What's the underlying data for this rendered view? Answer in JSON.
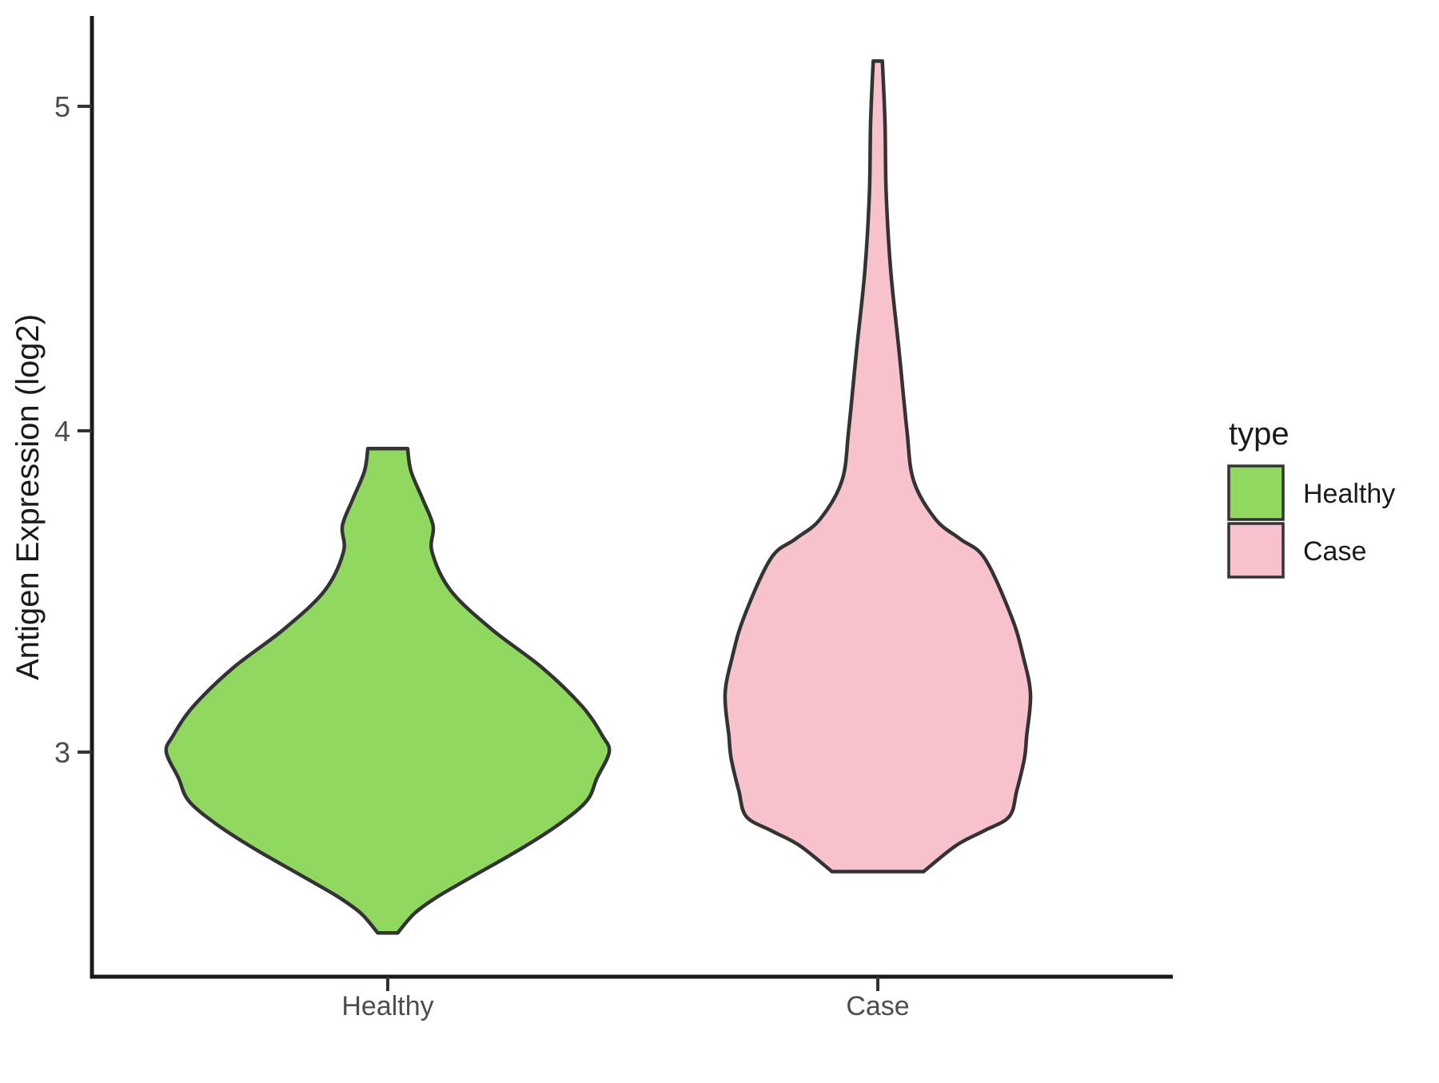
{
  "figure": {
    "background": "#ffffff"
  },
  "y_axis": {
    "title": "Antigen Expression (log2)",
    "tick_labels": [
      "5",
      "4",
      "3"
    ]
  },
  "x_axis": {
    "tick_labels": [
      "Healthy",
      "Case"
    ]
  },
  "legend": {
    "title": "type",
    "entries": [
      {
        "label": "Healthy",
        "color": "#90D860"
      },
      {
        "label": "Case",
        "color": "#F8C2CC"
      }
    ]
  },
  "chart_data": {
    "type": "violin",
    "title": "",
    "xlabel": "",
    "ylabel": "Antigen Expression (log2)",
    "categories": [
      "Healthy",
      "Case"
    ],
    "y_ticks": [
      3,
      4,
      5
    ],
    "ylim": [
      2.3,
      5.28
    ],
    "grid": false,
    "legend_position": "right",
    "legend_title": "type",
    "outline_color": "#333333",
    "text_colors": {
      "axis_text": "#4d4d4d",
      "titles": "#1a1a1a"
    },
    "series": [
      {
        "name": "Healthy",
        "fill": "#90D860",
        "range": [
          2.44,
          3.94
        ],
        "peak_value": 3.0,
        "flat_top": true,
        "flat_bottom": true,
        "profile": [
          [
            3.94,
            0.09
          ],
          [
            3.87,
            0.105
          ],
          [
            3.78,
            0.16
          ],
          [
            3.7,
            0.205
          ],
          [
            3.62,
            0.2
          ],
          [
            3.5,
            0.285
          ],
          [
            3.38,
            0.47
          ],
          [
            3.26,
            0.7
          ],
          [
            3.14,
            0.88
          ],
          [
            3.05,
            0.97
          ],
          [
            3.0,
            1.0
          ],
          [
            2.92,
            0.945
          ],
          [
            2.85,
            0.9
          ],
          [
            2.78,
            0.78
          ],
          [
            2.7,
            0.6
          ],
          [
            2.61,
            0.37
          ],
          [
            2.55,
            0.22
          ],
          [
            2.5,
            0.12
          ],
          [
            2.44,
            0.045
          ]
        ]
      },
      {
        "name": "Case",
        "fill": "#F8C2CC",
        "range": [
          2.63,
          5.14
        ],
        "peak_value": 3.18,
        "flat_top": true,
        "flat_bottom": true,
        "profile": [
          [
            5.14,
            0.03
          ],
          [
            4.95,
            0.047
          ],
          [
            4.73,
            0.055
          ],
          [
            4.49,
            0.085
          ],
          [
            4.24,
            0.14
          ],
          [
            4.0,
            0.19
          ],
          [
            3.84,
            0.235
          ],
          [
            3.72,
            0.38
          ],
          [
            3.66,
            0.54
          ],
          [
            3.6,
            0.7
          ],
          [
            3.42,
            0.875
          ],
          [
            3.3,
            0.95
          ],
          [
            3.18,
            1.0
          ],
          [
            3.05,
            0.975
          ],
          [
            2.98,
            0.96
          ],
          [
            2.88,
            0.91
          ],
          [
            2.8,
            0.86
          ],
          [
            2.755,
            0.69
          ],
          [
            2.71,
            0.51
          ],
          [
            2.63,
            0.3
          ]
        ]
      }
    ]
  }
}
